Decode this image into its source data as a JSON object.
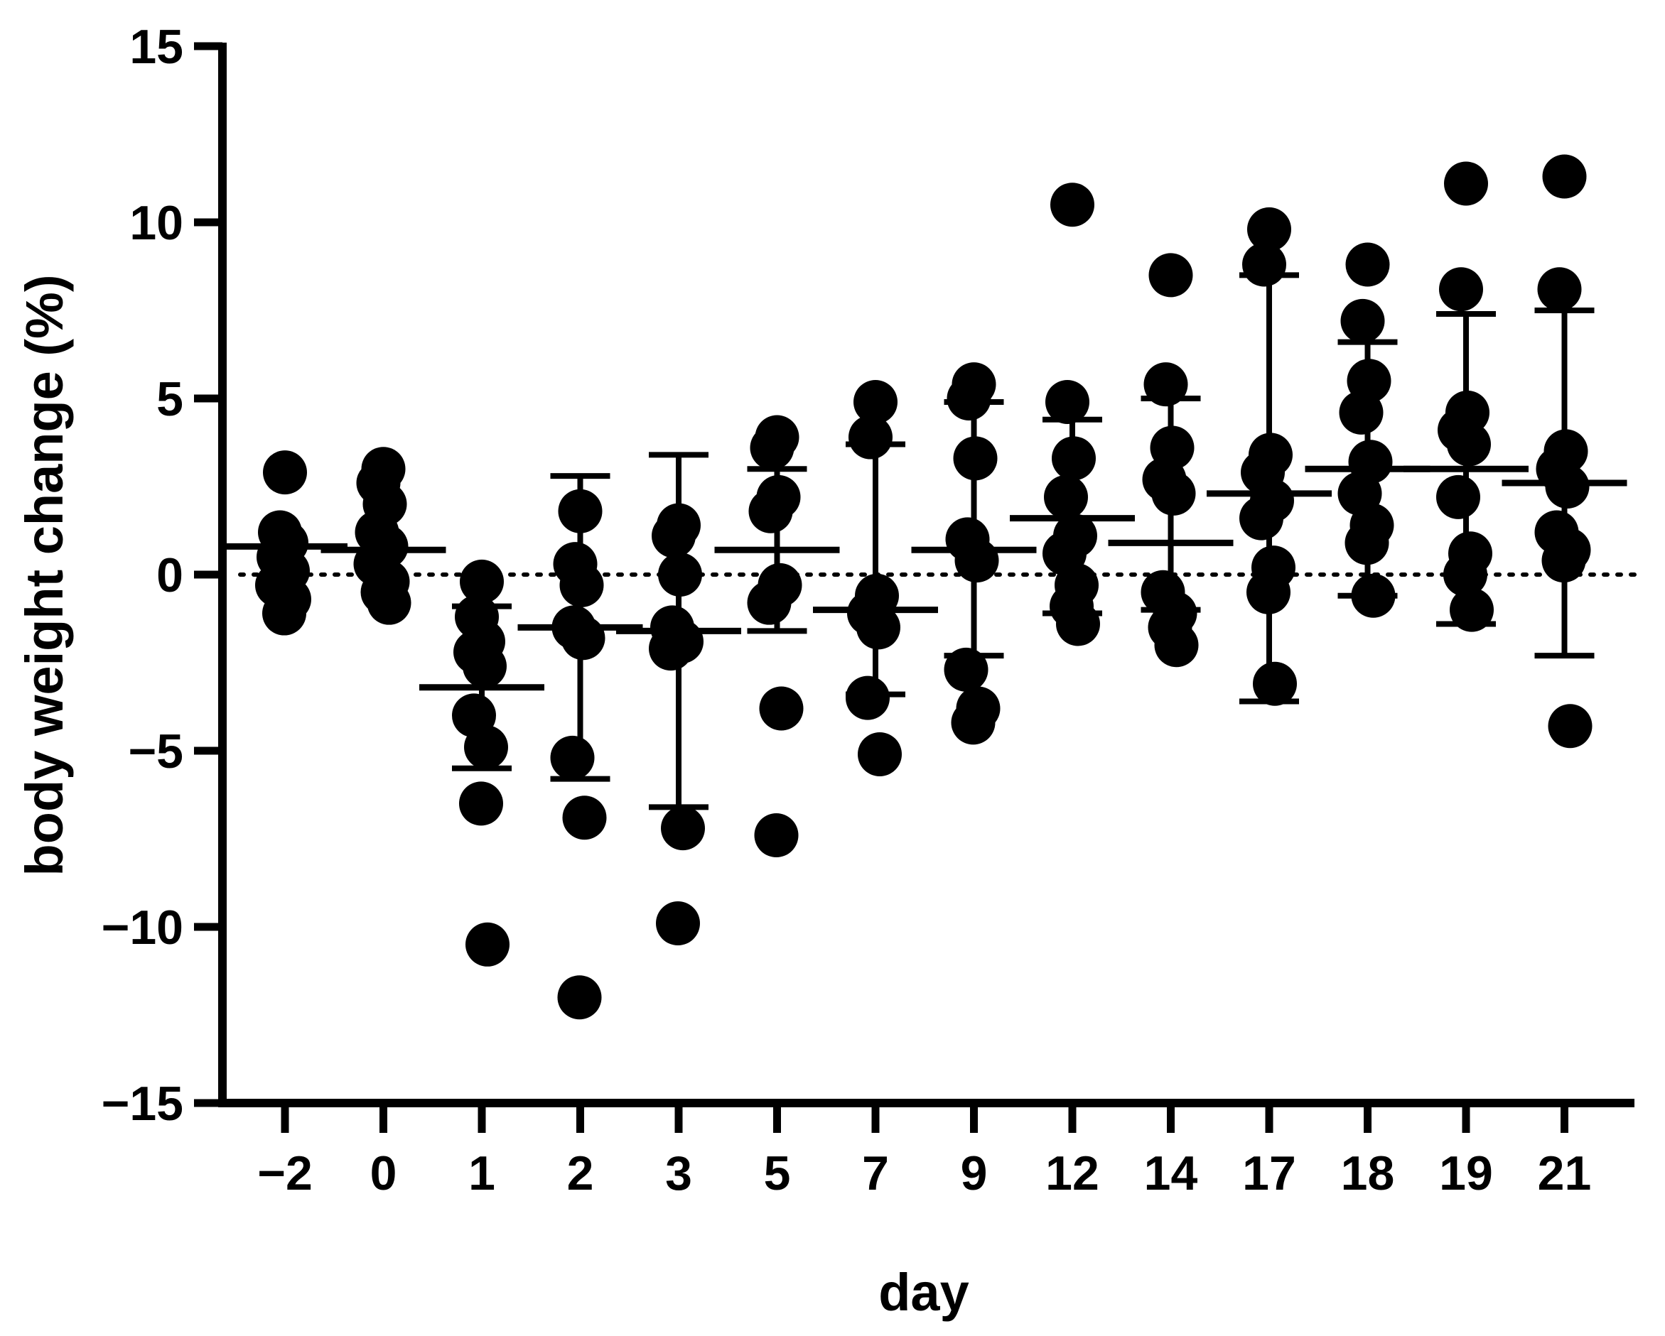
{
  "chart_data": {
    "type": "scatter",
    "xlabel": "day",
    "ylabel": "body weight change (%)",
    "ylim": [
      -15,
      15
    ],
    "y_ticks": [
      15,
      10,
      5,
      0,
      -5,
      -10,
      -15
    ],
    "y_tick_labels": [
      "15",
      "10",
      "5",
      "0",
      "−5",
      "−10",
      "−15"
    ],
    "categories": [
      "−2",
      "0",
      "1",
      "2",
      "3",
      "5",
      "7",
      "9",
      "12",
      "14",
      "17",
      "18",
      "19",
      "21"
    ],
    "reference_line": {
      "y": 0,
      "style": "dotted"
    },
    "grid": false,
    "marker_color": "#000000",
    "groups": [
      {
        "day": "−2",
        "points": [
          2.9,
          1.2,
          0.9,
          0.5,
          0.1,
          -0.3,
          -0.7,
          -1.1
        ],
        "mean": 0.8,
        "sd_low": 0.8,
        "sd_high": 0.8
      },
      {
        "day": "0",
        "points": [
          3.0,
          2.6,
          2.0,
          1.2,
          0.8,
          0.3,
          -0.2,
          -0.5,
          -0.8
        ],
        "mean": 0.7,
        "sd_low": 0.7,
        "sd_high": 0.7
      },
      {
        "day": "1",
        "points": [
          -0.2,
          -1.2,
          -1.9,
          -2.2,
          -2.6,
          -4.0,
          -4.9,
          -6.5,
          -10.5
        ],
        "mean": -3.2,
        "sd_low": -5.5,
        "sd_high": -0.9
      },
      {
        "day": "2",
        "points": [
          1.8,
          0.3,
          -0.3,
          -1.5,
          -1.8,
          -5.2,
          -6.9,
          -12.0
        ],
        "mean": -1.5,
        "sd_low": -5.8,
        "sd_high": 2.8
      },
      {
        "day": "3",
        "points": [
          1.4,
          1.1,
          0.0,
          -1.5,
          -1.9,
          -2.1,
          -7.2,
          -9.9
        ],
        "mean": -1.6,
        "sd_low": -6.6,
        "sd_high": 3.4
      },
      {
        "day": "5",
        "points": [
          3.9,
          3.6,
          2.2,
          1.8,
          -0.3,
          -0.8,
          -3.8,
          -7.4
        ],
        "mean": 0.7,
        "sd_low": -1.6,
        "sd_high": 3.0
      },
      {
        "day": "7",
        "points": [
          4.9,
          3.9,
          -0.6,
          -1.1,
          -1.5,
          -3.5,
          -5.1
        ],
        "mean": -1.0,
        "sd_low": -3.4,
        "sd_high": 3.7
      },
      {
        "day": "9",
        "points": [
          5.4,
          5.0,
          3.3,
          1.0,
          0.4,
          -2.7,
          -3.8,
          -4.2
        ],
        "mean": 0.7,
        "sd_low": -2.3,
        "sd_high": 4.9
      },
      {
        "day": "12",
        "points": [
          10.5,
          4.9,
          3.3,
          2.2,
          1.1,
          0.6,
          -0.3,
          -0.9,
          -1.4
        ],
        "mean": 1.6,
        "sd_low": -1.1,
        "sd_high": 4.4
      },
      {
        "day": "14",
        "points": [
          8.5,
          5.4,
          3.6,
          2.7,
          2.3,
          -0.5,
          -1.1,
          -1.5,
          -2.0
        ],
        "mean": 0.9,
        "sd_low": -1.0,
        "sd_high": 5.0
      },
      {
        "day": "17",
        "points": [
          9.8,
          8.8,
          3.4,
          2.9,
          2.1,
          1.6,
          0.2,
          -0.5,
          -3.1
        ],
        "mean": 2.3,
        "sd_low": -3.6,
        "sd_high": 8.5
      },
      {
        "day": "18",
        "points": [
          8.8,
          7.2,
          5.5,
          4.6,
          3.2,
          2.3,
          1.4,
          0.9,
          -0.6
        ],
        "mean": 3.0,
        "sd_low": -0.6,
        "sd_high": 6.6
      },
      {
        "day": "19",
        "points": [
          11.1,
          8.1,
          4.6,
          4.1,
          3.7,
          2.2,
          0.6,
          0.0,
          -1.0
        ],
        "mean": 3.0,
        "sd_low": -1.4,
        "sd_high": 7.4
      },
      {
        "day": "21",
        "points": [
          11.3,
          8.1,
          3.5,
          3.0,
          2.5,
          1.2,
          0.7,
          0.4,
          -4.3
        ],
        "mean": 2.6,
        "sd_low": -2.3,
        "sd_high": 7.5
      }
    ]
  }
}
